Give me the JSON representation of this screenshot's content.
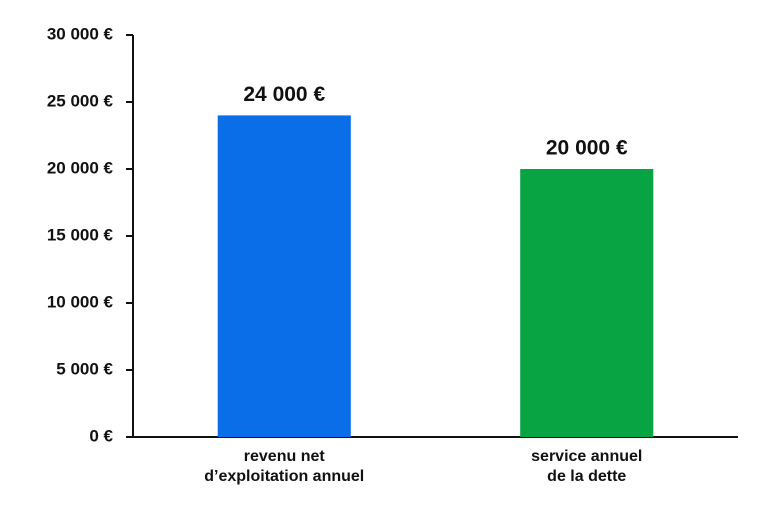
{
  "chart_data": {
    "type": "bar",
    "categories": [
      "revenu net\nd’exploitation annuel",
      "service annuel\nde la dette"
    ],
    "values": [
      24000,
      20000
    ],
    "value_labels": [
      "24 000 €",
      "20 000 €"
    ],
    "colors": [
      "#0a6ee8",
      "#08a443"
    ],
    "ylim": [
      0,
      30000
    ],
    "yticks": [
      {
        "value": 0,
        "label": "0 €"
      },
      {
        "value": 5000,
        "label": "5 000 €"
      },
      {
        "value": 10000,
        "label": "10 000 €"
      },
      {
        "value": 15000,
        "label": "15 000 €"
      },
      {
        "value": 20000,
        "label": "20 000 €"
      },
      {
        "value": 25000,
        "label": "25 000 €"
      },
      {
        "value": 30000,
        "label": "30 000 €"
      }
    ]
  }
}
